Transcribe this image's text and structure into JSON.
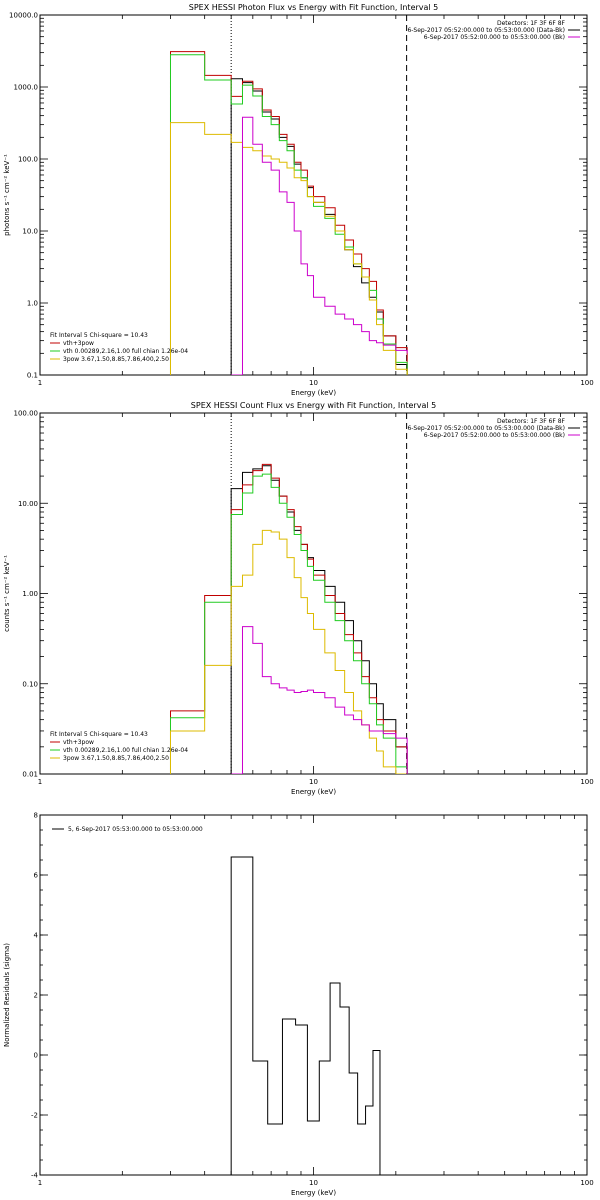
{
  "chart_data": [
    {
      "type": "line",
      "title": "SPEX HESSI Photon Flux vs Energy with Fit Function, Interval 5",
      "xlabel": "Energy (keV)",
      "ylabel": "photons s⁻¹ cm⁻² keV⁻¹",
      "xscale": "log",
      "yscale": "log",
      "xlim": [
        1,
        100
      ],
      "ylim": [
        0.1,
        10000
      ],
      "xticks": [
        {
          "v": 1,
          "label": "1"
        },
        {
          "v": 10,
          "label": "10"
        },
        {
          "v": 100,
          "label": "100"
        }
      ],
      "yticks": [
        {
          "v": 0.1,
          "label": "0.1"
        },
        {
          "v": 1,
          "label": "1.0"
        },
        {
          "v": 10,
          "label": "10.0"
        },
        {
          "v": 100,
          "label": "100.0"
        },
        {
          "v": 1000,
          "label": "1000.0"
        },
        {
          "v": 10000,
          "label": "10000.0"
        }
      ],
      "vlines": [
        {
          "x": 5.0,
          "style": "dotted",
          "color": "#000000"
        },
        {
          "x": 21.9,
          "style": "dashed",
          "color": "#000000"
        }
      ],
      "edges": [
        3,
        4,
        5,
        5.5,
        6,
        6.5,
        7,
        7.5,
        8,
        8.5,
        9,
        9.5,
        10,
        11,
        12,
        13,
        14,
        15,
        16,
        17,
        18,
        20,
        22
      ],
      "series": [
        {
          "name": "",
          "color": "#000000",
          "start": 2,
          "values": [
            1300,
            1150,
            880,
            450,
            360,
            200,
            150,
            85,
            55,
            40,
            25,
            17,
            10,
            5.5,
            3.2,
            1.9,
            1.2,
            0.75,
            0.35,
            0.14
          ]
        },
        {
          "name": "vth+3pow",
          "color": "#c00000",
          "start": 0,
          "values": [
            3100,
            1450,
            740,
            1200,
            940,
            480,
            390,
            220,
            160,
            90,
            70,
            42,
            30,
            21,
            12,
            7.5,
            4.8,
            3.0,
            2.0,
            0.8,
            0.35,
            0.24
          ]
        },
        {
          "name": "vth 0.00289,2.16,1.00  full chian 1.26e-04",
          "color": "#22cc22",
          "start": 0,
          "values": [
            2800,
            1250,
            580,
            1060,
            750,
            390,
            300,
            180,
            130,
            70,
            55,
            30,
            22,
            15,
            9,
            6,
            3.5,
            2.3,
            1.5,
            0.6,
            0.27,
            0.15
          ]
        },
        {
          "name": "3pow 3.67,1.50,8.85,7.86,400,2.50",
          "color": "#ddbb00",
          "start": 0,
          "values": [
            320,
            220,
            170,
            145,
            130,
            110,
            100,
            90,
            75,
            55,
            50,
            30,
            25,
            16,
            10,
            5.5,
            3.5,
            2.3,
            1.1,
            0.5,
            0.22,
            0.12
          ]
        },
        {
          "name": "6-Sep-2017 05:52:00.000 to 05:53:00.000 (Bk)",
          "color": "#cc00cc",
          "start": 2,
          "values": [
            0.05,
            380,
            160,
            90,
            70,
            35,
            25,
            10,
            3.5,
            2.4,
            1.2,
            0.9,
            0.7,
            0.6,
            0.5,
            0.4,
            0.3,
            0.28,
            0.26,
            0.22,
            0.2,
            0.18
          ]
        }
      ],
      "legend": {
        "placement": "bottom-left",
        "header": "Fit Interval 5   Chi-square = 10.43",
        "entries": [
          "vth+3pow",
          "vth 0.00289,2.16,1.00  full chian 1.26e-04",
          "3pow 3.67,1.50,8.85,7.86,400,2.50"
        ]
      },
      "legend_right": {
        "placement": "top-right",
        "header": "Detectors: 1F 3F 6F 8F",
        "entries": [
          "6-Sep-2017 05:52:00.000 to 05:53:00.000 (Data-Bk)",
          "6-Sep-2017 05:52:00.000 to 05:53:00.000 (Bk)"
        ]
      }
    },
    {
      "type": "line",
      "title": "SPEX HESSI Count Flux vs Energy with Fit Function, Interval 5",
      "xlabel": "Energy (keV)",
      "ylabel": "counts s⁻¹ cm⁻² keV⁻¹",
      "xscale": "log",
      "yscale": "log",
      "xlim": [
        1,
        100
      ],
      "ylim": [
        0.01,
        100
      ],
      "xticks": [
        {
          "v": 1,
          "label": "1"
        },
        {
          "v": 10,
          "label": "10"
        },
        {
          "v": 100,
          "label": "100"
        }
      ],
      "yticks": [
        {
          "v": 0.01,
          "label": "0.01"
        },
        {
          "v": 0.1,
          "label": "0.10"
        },
        {
          "v": 1,
          "label": "1.00"
        },
        {
          "v": 10,
          "label": "10.00"
        },
        {
          "v": 100,
          "label": "100.00"
        }
      ],
      "vlines": [
        {
          "x": 5.0,
          "style": "dotted",
          "color": "#000000"
        },
        {
          "x": 21.9,
          "style": "dashed",
          "color": "#000000"
        }
      ],
      "edges": [
        3,
        4,
        5,
        5.5,
        6,
        6.5,
        7,
        7.5,
        8,
        8.5,
        9,
        9.5,
        10,
        11,
        12,
        13,
        14,
        15,
        16,
        17,
        18,
        20,
        22
      ],
      "series": [
        {
          "name": "",
          "color": "#000000",
          "start": 2,
          "values": [
            14.5,
            22,
            24,
            26,
            18,
            12,
            8,
            5,
            3.5,
            2.5,
            1.8,
            1.2,
            0.8,
            0.5,
            0.3,
            0.18,
            0.1,
            0.06,
            0.04,
            0.02
          ]
        },
        {
          "name": "vth+3pow",
          "color": "#c00000",
          "start": 0,
          "values": [
            0.05,
            0.95,
            8.5,
            16,
            23,
            27,
            19,
            12,
            8.5,
            5.5,
            3.5,
            2.4,
            1.6,
            0.95,
            0.6,
            0.35,
            0.22,
            0.12,
            0.07,
            0.04,
            0.03,
            0.02
          ]
        },
        {
          "name": "vth 0.00289,2.16,1.00  full chian 1.26e-04",
          "color": "#22cc22",
          "start": 0,
          "values": [
            0.042,
            0.8,
            7.5,
            13,
            20,
            21,
            15,
            10,
            7,
            4.5,
            3,
            2,
            1.4,
            0.8,
            0.5,
            0.3,
            0.18,
            0.1,
            0.06,
            0.035,
            0.025,
            0.012
          ]
        },
        {
          "name": "3pow 3.67,1.50,8.85,7.86,400,2.50",
          "color": "#ddbb00",
          "start": 0,
          "values": [
            0.03,
            0.16,
            1.2,
            1.6,
            3.5,
            5.0,
            4.8,
            4.0,
            2.5,
            1.5,
            0.9,
            0.6,
            0.4,
            0.22,
            0.14,
            0.08,
            0.05,
            0.035,
            0.025,
            0.018,
            0.012,
            0.009
          ]
        },
        {
          "name": "6-Sep-2017 05:52:00.000 to 05:53:00.000 (Bk)",
          "color": "#cc00cc",
          "start": 2,
          "values": [
            0.009,
            0.43,
            0.28,
            0.12,
            0.1,
            0.09,
            0.085,
            0.08,
            0.082,
            0.085,
            0.08,
            0.07,
            0.055,
            0.045,
            0.04,
            0.035,
            0.03,
            0.03,
            0.028,
            0.025
          ]
        }
      ],
      "legend": {
        "placement": "bottom-left",
        "header": "Fit Interval 5   Chi-square = 10.43",
        "entries": [
          "vth+3pow",
          "vth 0.00289,2.16,1.00  full chian 1.26e-04",
          "3pow 3.67,1.50,8.85,7.86,400,2.50"
        ]
      },
      "legend_right": {
        "placement": "top-right",
        "header": "Detectors: 1F 3F 6F 8F",
        "entries": [
          "6-Sep-2017 05:52:00.000 to 05:53:00.000 (Data-Bk)",
          "6-Sep-2017 05:52:00.000 to 05:53:00.000 (Bk)"
        ]
      }
    },
    {
      "type": "line",
      "title": "",
      "xlabel": "Energy (keV)",
      "ylabel": "Normalized Residuals (sigma)",
      "xscale": "log",
      "yscale": "linear",
      "xlim": [
        1,
        100
      ],
      "ylim": [
        -4,
        8
      ],
      "xticks": [
        {
          "v": 1,
          "label": "1"
        },
        {
          "v": 10,
          "label": "10"
        },
        {
          "v": 100,
          "label": "100"
        }
      ],
      "yticks": [
        {
          "v": -4,
          "label": "-4"
        },
        {
          "v": -2,
          "label": "-2"
        },
        {
          "v": 0,
          "label": "0"
        },
        {
          "v": 2,
          "label": "2"
        },
        {
          "v": 4,
          "label": "4"
        },
        {
          "v": 6,
          "label": "6"
        },
        {
          "v": 8,
          "label": "8"
        }
      ],
      "vlines": [],
      "edges": [
        5,
        6,
        6.8,
        7.7,
        8.6,
        9.5,
        10.5,
        11.5,
        12.5,
        13.5,
        14.5,
        15.5,
        16.5,
        17.5,
        18.5,
        20,
        22
      ],
      "series": [
        {
          "name": "5,  6-Sep-2017 05:53:00.000 to 05:53:00.000",
          "color": "#000000",
          "start": 0,
          "values": [
            6.6,
            -0.2,
            -2.3,
            1.2,
            1.0,
            -2.2,
            -0.2,
            2.4,
            1.6,
            -0.6,
            -2.3,
            -1.7,
            0.15
          ]
        }
      ],
      "legend": {
        "placement": "top-left",
        "header": "",
        "entries": [
          "5,  6-Sep-2017 05:53:00.000 to 05:53:00.000"
        ]
      }
    }
  ]
}
